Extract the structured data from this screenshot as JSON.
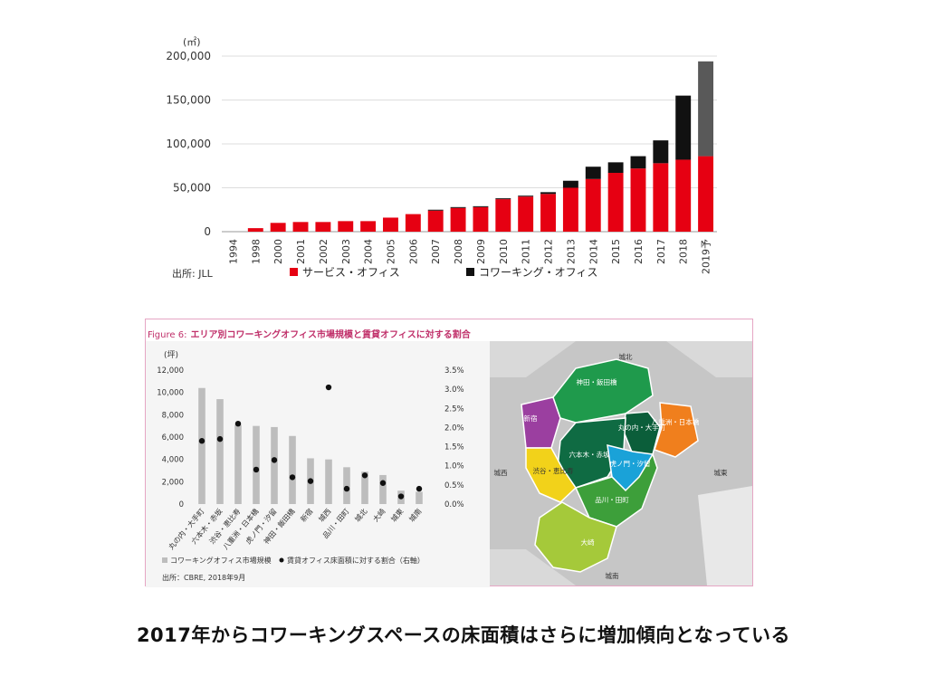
{
  "chart_data": [
    {
      "type": "bar",
      "stacked": true,
      "yunit": "(㎡)",
      "categories": [
        "1994",
        "1998",
        "2000",
        "2001",
        "2002",
        "2003",
        "2004",
        "2005",
        "2006",
        "2007",
        "2008",
        "2009",
        "2010",
        "2011",
        "2012",
        "2013",
        "2014",
        "2015",
        "2016",
        "2017",
        "2018",
        "2019予"
      ],
      "series": [
        {
          "name": "サービス・オフィス",
          "color": "#e60012",
          "values": [
            0,
            4000,
            10000,
            11000,
            11000,
            12000,
            12000,
            16000,
            20000,
            24000,
            27000,
            28000,
            37000,
            40000,
            43000,
            50000,
            60000,
            67000,
            72000,
            78000,
            82000,
            86000
          ]
        },
        {
          "name": "コワーキング・オフィス",
          "color": "#111111",
          "values": [
            0,
            0,
            0,
            0,
            0,
            0,
            0,
            0,
            0,
            1000,
            1000,
            1000,
            1000,
            1000,
            2000,
            8000,
            14000,
            12000,
            14000,
            26000,
            73000,
            0
          ]
        },
        {
          "name": "",
          "color": "#595959",
          "values": [
            0,
            0,
            0,
            0,
            0,
            0,
            0,
            0,
            0,
            0,
            0,
            0,
            0,
            0,
            0,
            0,
            0,
            0,
            0,
            0,
            0,
            108000
          ]
        }
      ],
      "yticks": [
        "0",
        "50,000",
        "100,000",
        "150,000",
        "200,000"
      ],
      "ylim": [
        0,
        200000
      ],
      "grid": true,
      "legend": "bottom",
      "source": "出所: JLL"
    },
    {
      "type": "bar",
      "title_label": "Figure 6:",
      "title": "エリア別コワーキングオフィス市場規模と賃貸オフィスに対する割合",
      "yunit": "(坪)",
      "categories": [
        "丸の内・大手町",
        "六本木・赤坂",
        "渋谷・恵比寿",
        "八重洲・日本橋",
        "虎ノ門・汐留",
        "神田・飯田橋",
        "新宿",
        "城西",
        "品川・田町",
        "城北",
        "大崎",
        "城東",
        "城南"
      ],
      "bar_series": {
        "name": "コワーキングオフィス市場規模",
        "color": "#bdbdbd",
        "values": [
          10400,
          9400,
          7100,
          7000,
          6900,
          6100,
          4100,
          4000,
          3300,
          2900,
          2600,
          1200,
          1100
        ]
      },
      "dot_series": {
        "name": "賃貸オフィス床面積に対する割合（右軸）",
        "color": "#111111",
        "values": [
          1.65,
          1.7,
          2.1,
          0.9,
          1.15,
          0.7,
          0.6,
          3.05,
          0.4,
          0.75,
          0.55,
          0.2,
          0.4
        ]
      },
      "yticks": [
        "0",
        "2,000",
        "4,000",
        "6,000",
        "8,000",
        "10,000",
        "12,000"
      ],
      "ylim": [
        0,
        12000
      ],
      "y2ticks": [
        "0.0%",
        "0.5%",
        "1.0%",
        "1.5%",
        "2.0%",
        "2.5%",
        "3.0%",
        "3.5%"
      ],
      "y2lim": [
        0,
        3.5
      ],
      "legend": "bottom",
      "source": "出所：CBRE, 2018年9月"
    }
  ],
  "map": {
    "labels": [
      "城北",
      "新宿",
      "神田・飯田橋",
      "丸の内・大手町",
      "八重洲・日本橋",
      "城西",
      "六本木・赤坂",
      "虎ノ門・汐留",
      "渋谷・恵比寿",
      "城東",
      "品川・田町",
      "大崎",
      "城南"
    ],
    "colors": {
      "shinjuku": "#9b3fa0",
      "kanda": "#1f9a4c",
      "marunouchi": "#0b5e3a",
      "yaesu": "#f07f1d",
      "roppongi": "#0f6b43",
      "toranomon": "#1aa2d8",
      "shibuya": "#f2d21a",
      "shinagawa": "#3d9f3a",
      "osaki": "#a5c93a"
    }
  },
  "caption": "2017年からコワーキングスペースの床面積はさらに増加傾向となっている"
}
